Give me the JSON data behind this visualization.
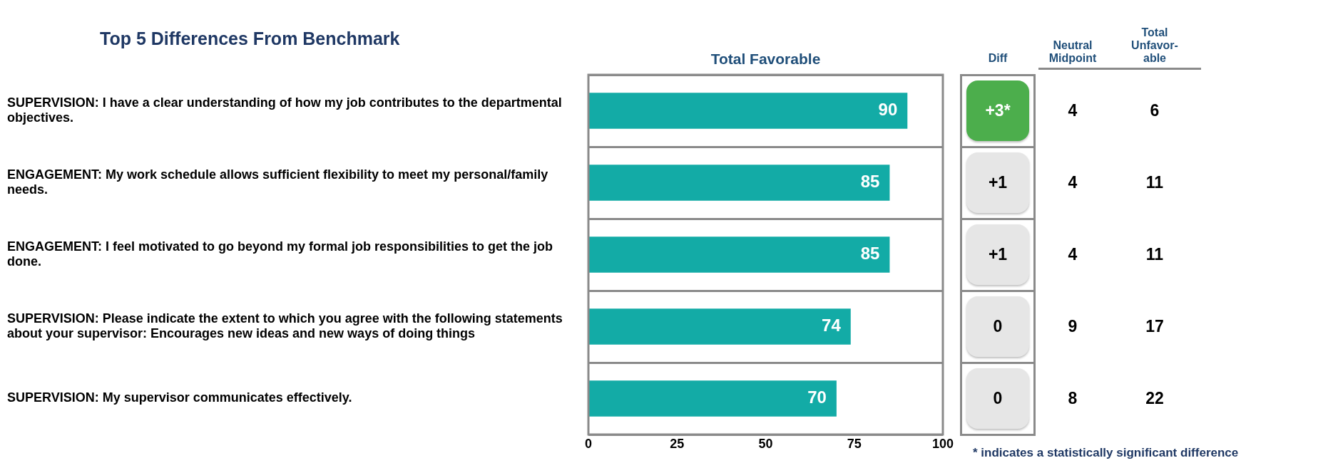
{
  "chart_data": [
    {
      "type": "bar",
      "title": "Top 5 Differences From Benchmark",
      "xlabel": "Total Favorable",
      "categories": [
        "SUPERVISION: I have a clear understanding of how my job contributes to the departmental objectives.",
        "ENGAGEMENT: My work schedule allows sufficient flexibility to meet my personal/family needs.",
        "ENGAGEMENT: I feel motivated to go beyond my formal job responsibilities to get the job done.",
        "SUPERVISION: Please indicate the extent to which you agree with the following statements about your supervisor: Encourages new ideas and new ways of doing things",
        "SUPERVISION: My supervisor communicates effectively."
      ],
      "values": [
        90,
        85,
        85,
        74,
        70
      ],
      "color": "#13aba6",
      "orientation": "horizontal",
      "xlim": [
        0,
        100
      ],
      "xticks": [
        0,
        25,
        50,
        75,
        100
      ],
      "data_labels": true,
      "grid": "y"
    },
    {
      "type": "other",
      "categories": [
        "Diff",
        "Neutral Midpoint",
        "Total Unfavor-able"
      ],
      "cell_labels": [
        [
          "+3*",
          "4",
          "6"
        ],
        [
          "+1",
          "4",
          "11"
        ],
        [
          "+1",
          "4",
          "11"
        ],
        [
          "0",
          "9",
          "17"
        ],
        [
          "0",
          "8",
          "22"
        ]
      ],
      "colors": [
        [
          "#4cae4c",
          null,
          null
        ],
        [
          "#e6e6e6",
          null,
          null
        ],
        [
          "#e6e6e6",
          null,
          null
        ],
        [
          "#e6e6e6",
          null,
          null
        ],
        [
          "#e6e6e6",
          null,
          null
        ]
      ],
      "annotations": [
        "* indicates a statistically significant difference"
      ]
    }
  ]
}
